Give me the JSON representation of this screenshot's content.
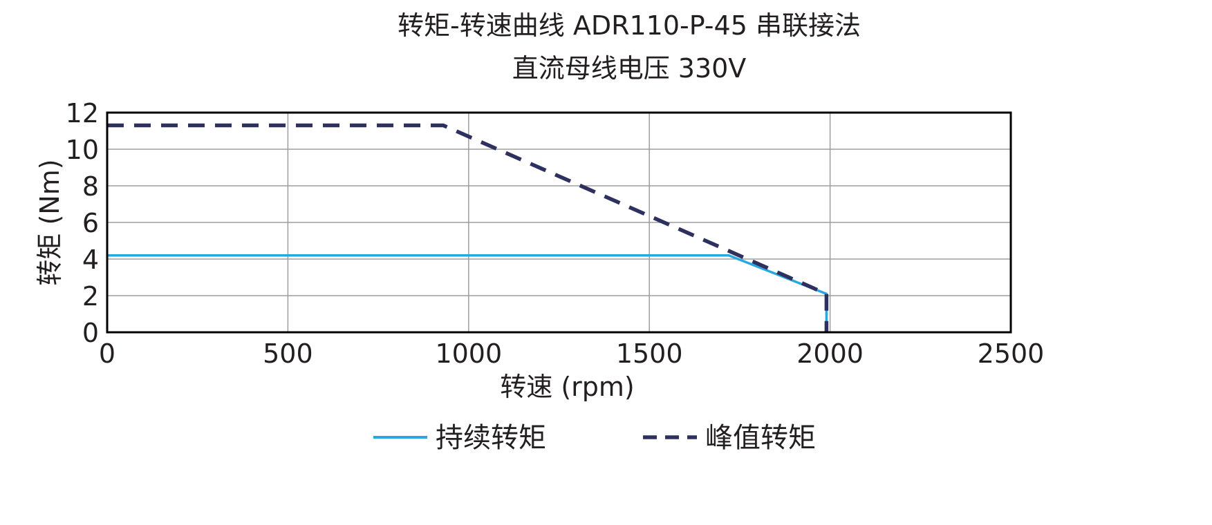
{
  "chart_data": {
    "type": "line",
    "title": "转矩-转速曲线 ADR110-P-45 串联接法",
    "subtitle": "直流母线电压 330V",
    "xlabel": "转速 (rpm)",
    "ylabel": "转矩 (Nm)",
    "xlim": [
      0,
      2500
    ],
    "ylim": [
      0,
      12
    ],
    "xticks": [
      0,
      500,
      1000,
      1500,
      2000,
      2500
    ],
    "yticks": [
      0,
      2,
      4,
      6,
      8,
      10,
      12
    ],
    "xtick_labels": [
      "0",
      "500",
      "1000",
      "1500",
      "2000",
      "2500"
    ],
    "ytick_labels": [
      "0",
      "2",
      "4",
      "6",
      "8",
      "10",
      "12"
    ],
    "grid": true,
    "legend_position": "bottom-center",
    "series": [
      {
        "name": "持续转矩",
        "style": "solid",
        "color": "#29a8e0",
        "points": [
          [
            0,
            4.2
          ],
          [
            1720,
            4.2
          ],
          [
            1990,
            2.1
          ],
          [
            1990,
            0
          ]
        ]
      },
      {
        "name": "峰值转矩",
        "style": "dashed",
        "color": "#2e3160",
        "points": [
          [
            0,
            11.3
          ],
          [
            930,
            11.3
          ],
          [
            1990,
            2.1
          ],
          [
            1990,
            0
          ]
        ]
      }
    ]
  }
}
